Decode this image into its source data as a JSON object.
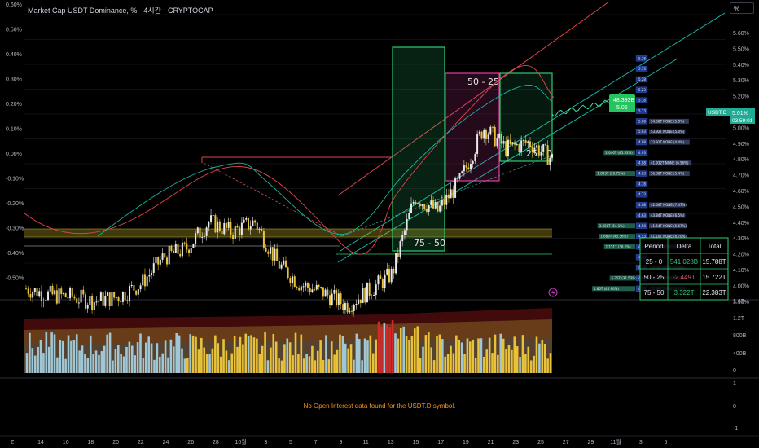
{
  "header": {
    "title": "Market Cap USDT Dominance, % · 4시간 · CRYPTOCAP",
    "unit_button": "%"
  },
  "colors": {
    "background": "#000000",
    "candle_up": "#e8c33a",
    "candle_down": "#e8e8e8",
    "zone_green": "#2ecc71",
    "zone_pink": "#e040a0",
    "channel_red": "#e0454f",
    "channel_teal": "#19b3a0",
    "price_label_bg": "#22ab94",
    "volume_light": "#9fc7d6",
    "volume_gold": "#e8c33a",
    "volume_red": "#d62828",
    "oi_text": "#f7931a"
  },
  "chart_data": [
    {
      "type": "candlestick",
      "title": "Market Cap USDT Dominance, % · 4시간 · CRYPTOCAP",
      "y_axis_left": [
        "0.60%",
        "0.50%",
        "0.40%",
        "0.30%",
        "0.20%",
        "0.10%",
        "0.00%",
        "-0.10%",
        "-0.20%",
        "-0.30%",
        "-0.40%",
        "-0.50%"
      ],
      "y_axis_right": [
        "5.60%",
        "5.50%",
        "5.40%",
        "5.30%",
        "5.20%",
        "5.10%",
        "5.00%",
        "4.90%",
        "4.80%",
        "4.70%",
        "4.60%",
        "4.50%",
        "4.40%",
        "4.30%",
        "4.20%",
        "4.10%",
        "4.00%",
        "3.90%"
      ],
      "x_axis": [
        "14",
        "16",
        "18",
        "20",
        "22",
        "24",
        "26",
        "28",
        "10월",
        "3",
        "5",
        "7",
        "9",
        "11",
        "13",
        "15",
        "17",
        "19",
        "21",
        "23",
        "25",
        "27",
        "29",
        "11월",
        "3",
        "5"
      ],
      "close_path": [
        [
          4.28,
          4.25
        ],
        [
          4.25,
          4.26
        ],
        [
          4.24,
          4.27
        ],
        [
          4.22,
          4.25
        ],
        [
          4.24,
          4.26
        ],
        [
          4.3,
          4.33
        ],
        [
          4.43,
          4.5
        ],
        [
          4.47,
          4.58
        ],
        [
          4.6,
          4.67
        ],
        [
          4.55,
          4.6
        ],
        [
          4.6,
          4.58
        ],
        [
          4.4,
          4.45
        ],
        [
          4.3,
          4.32
        ],
        [
          4.26,
          4.24
        ],
        [
          4.2,
          4.21
        ],
        [
          4.27,
          4.28
        ],
        [
          4.35,
          4.38
        ],
        [
          4.72,
          4.85
        ],
        [
          4.65,
          4.58
        ],
        [
          4.8,
          4.95
        ],
        [
          5.05,
          5.08
        ],
        [
          4.95,
          4.85
        ],
        [
          4.98,
          5.04
        ],
        [
          4.9,
          5.02
        ]
      ],
      "current_price": "5.01%",
      "current_price_sub": "03:59:01",
      "symbol_tag": "USDT.D",
      "projection_label": "48.393B",
      "projection_sub": "5.06",
      "zones": [
        {
          "label": "75 - 50"
        },
        {
          "label": "50 - 25"
        },
        {
          "label": "25 - 0"
        }
      ],
      "table": {
        "headers": [
          "Period",
          "Delta",
          "Total"
        ],
        "rows": [
          {
            "period": "25 - 0",
            "delta": "541.028B",
            "total": "15.788T",
            "sign": "pos"
          },
          {
            "period": "50 - 25",
            "delta": "-2.449T",
            "total": "15.722T",
            "sign": "neg"
          },
          {
            "period": "75 - 50",
            "delta": "3.322T",
            "total": "22.383T",
            "sign": "pos"
          }
        ]
      },
      "profile_levels": [
        "5.38",
        "5.33",
        "5.28",
        "5.23",
        "5.18",
        "5.13",
        "5.08",
        "5.03",
        "4.98",
        "4.93",
        "4.88",
        "4.83",
        "4.78",
        "4.73",
        "4.68",
        "4.63",
        "4.58",
        "4.53",
        "4.48",
        "4.43",
        "4.38",
        "4.33",
        "4.28"
      ],
      "profile_left": [
        {
          "level": "4.93",
          "text": "2.046T (45.53%)"
        },
        {
          "level": "4.83",
          "text": "1.893T (26.75%)"
        },
        {
          "level": "4.58",
          "text": "3.228T (54.1%)"
        },
        {
          "level": "4.53",
          "text": "1.689T (45.56%)"
        },
        {
          "level": "4.48",
          "text": "1.151T (36.1%)"
        },
        {
          "level": "4.33",
          "text": "5.35T (31.53%)"
        },
        {
          "level": "4.28",
          "text": "1.80T (46.96%)"
        }
      ],
      "profile_right": [
        {
          "level": "5.08",
          "text": "54.58T NONE (5.0%)"
        },
        {
          "level": "5.03",
          "text": "53.92T NONE (5.0%)"
        },
        {
          "level": "4.98",
          "text": "23.91T NONE (4.4%)"
        },
        {
          "level": "4.88",
          "text": "41.932T NONE (6.56%)"
        },
        {
          "level": "4.83",
          "text": "56.38T NONE (5.4%)"
        },
        {
          "level": "4.68",
          "text": "42.06T NONE (7.47%)"
        },
        {
          "level": "4.63",
          "text": "43.84T NONE (6.5%)"
        },
        {
          "level": "4.58",
          "text": "41.54T NONE (6.67%)"
        },
        {
          "level": "4.53",
          "text": "41.10T NONE (6.70%)"
        },
        {
          "level": "4.48",
          "text": "38.90T NONE (6.63%)"
        },
        {
          "level": "4.38",
          "text": "39.86T NONE (6.94%)"
        },
        {
          "level": "4.33",
          "text": "46.03T NONE (8.11%)"
        },
        {
          "level": "4.28",
          "text": "51.89T NONE (9.14%)"
        }
      ]
    },
    {
      "type": "bar",
      "title": "",
      "y_axis": [
        "1.6T",
        "1.2T",
        "800B",
        "400B",
        "0"
      ]
    },
    {
      "type": "line",
      "title": "",
      "y_axis": [
        "1",
        "0",
        "-1"
      ],
      "message": "No Open Interest data found for the USDT.D symbol."
    }
  ],
  "bottom_axis_left_tag": "Z"
}
